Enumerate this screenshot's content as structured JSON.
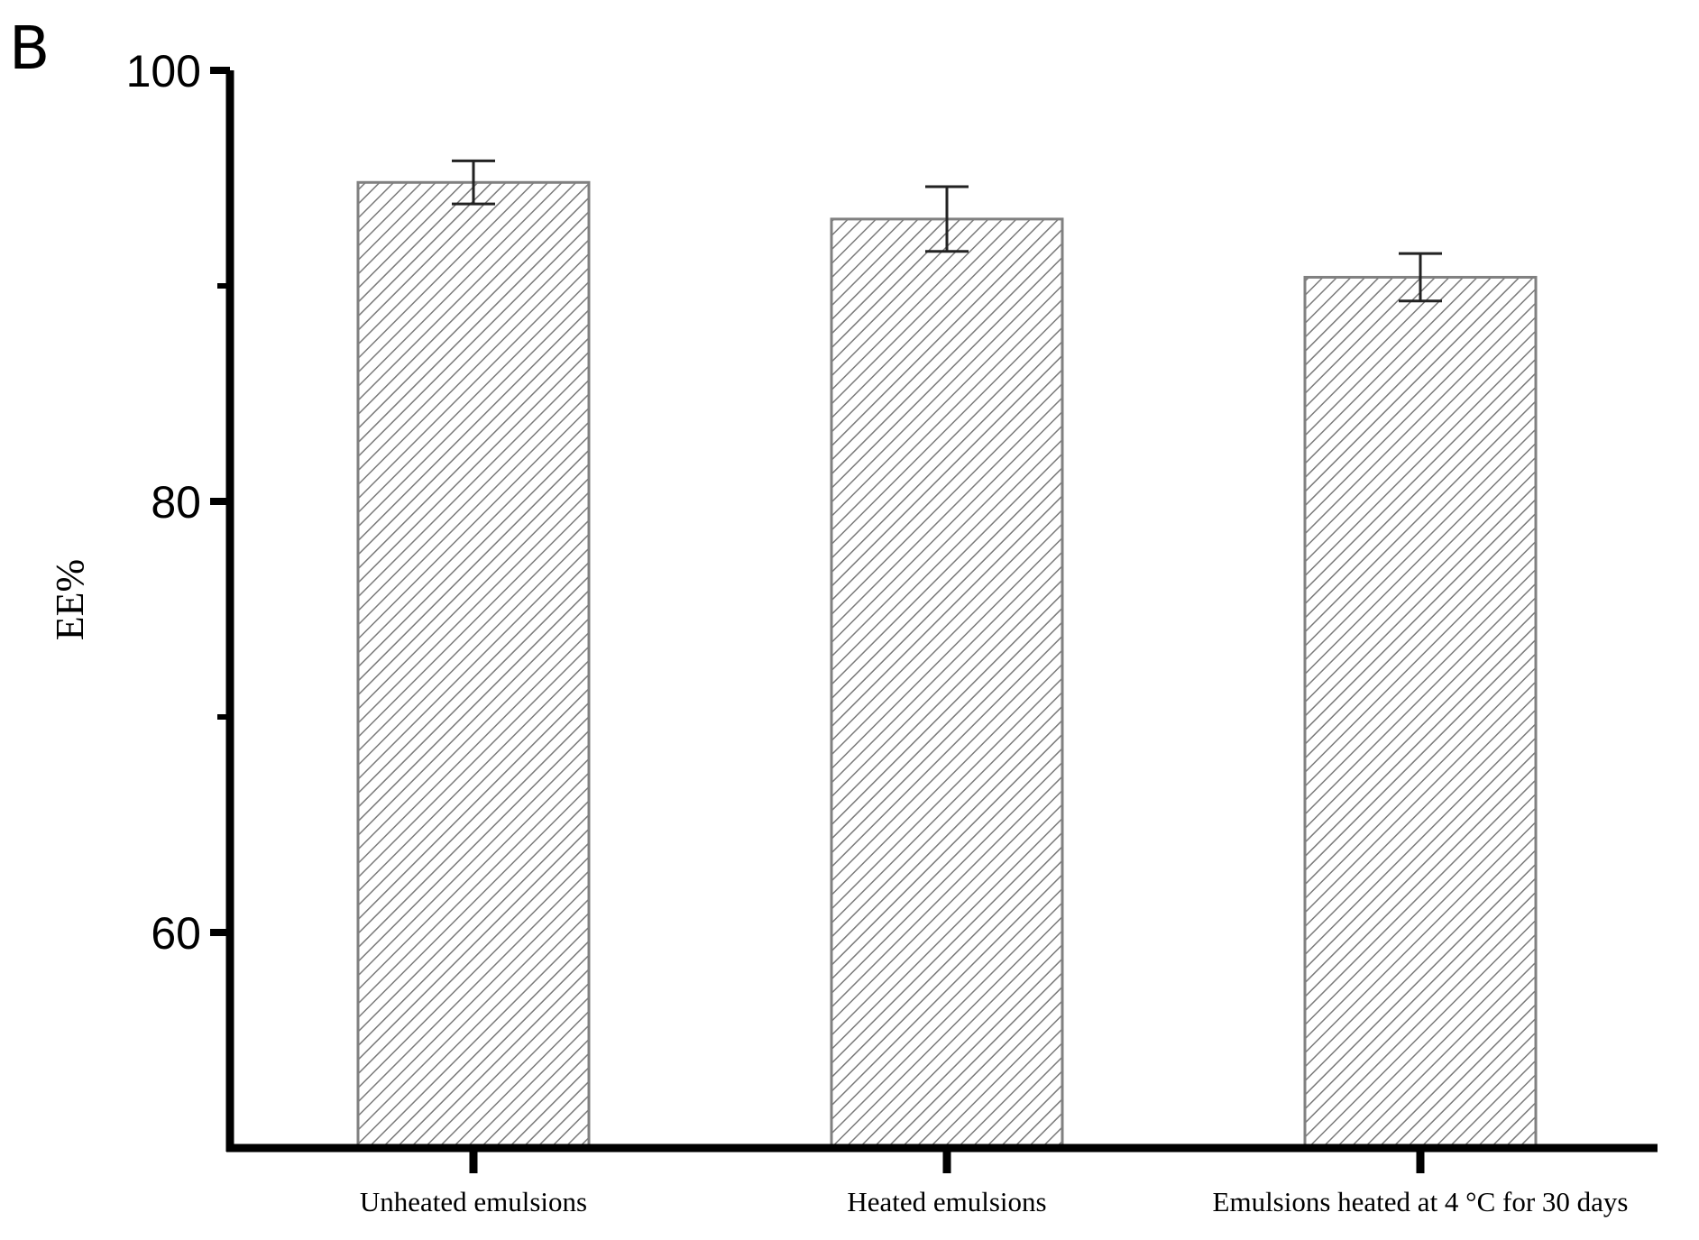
{
  "panel_label": "B",
  "chart_data": {
    "type": "bar",
    "title": "",
    "xlabel": "",
    "ylabel": "EE%",
    "ylim": [
      50,
      100
    ],
    "yticks": [
      60,
      80,
      100
    ],
    "ytick_labels": [
      "60",
      "80",
      "100"
    ],
    "minor_yticks": [
      70,
      90
    ],
    "categories": [
      "Unheated emulsions",
      "Heated emulsions",
      "Emulsions heated at 4 °C for 30 days"
    ],
    "values": [
      94.8,
      93.1,
      90.4
    ],
    "errors": [
      1.0,
      1.5,
      1.1
    ],
    "grid": false,
    "legend": "none",
    "bar_fill": "hatched diagonal",
    "bar_color": "#808080",
    "axis_color": "#000000"
  }
}
